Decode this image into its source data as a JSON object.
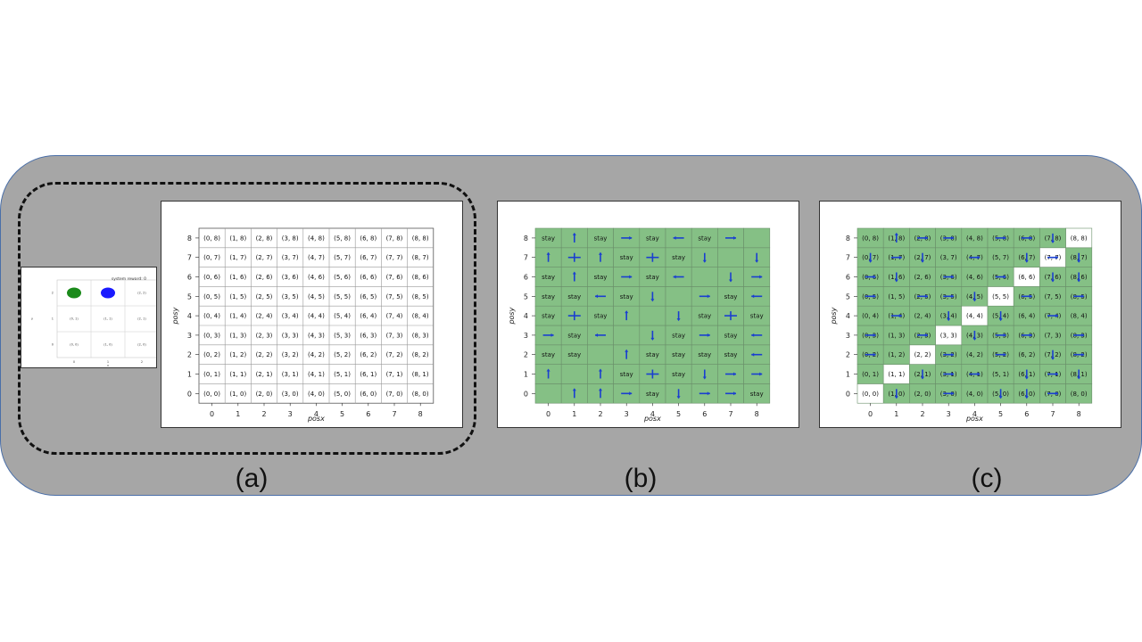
{
  "small_env": {
    "reward_text": "system reward: 0",
    "colors": {
      "agent1": "#1a8a1a",
      "agent2": "#1a1aff"
    },
    "rows": [
      {
        "y": "2",
        "cells": [
          "",
          "",
          "(2, 2)"
        ]
      },
      {
        "y": "1",
        "cells": [
          "(0, 1)",
          "(1, 1)",
          "(2, 1)"
        ]
      },
      {
        "y": "0",
        "cells": [
          "(0, 0)",
          "(1, 0)",
          "(2, 0)"
        ]
      }
    ],
    "x_ticks": [
      "0",
      "1",
      "2"
    ],
    "xlabel": "x",
    "ylabel": "y"
  },
  "grid_axis": {
    "ticks": [
      "0",
      "1",
      "2",
      "3",
      "4",
      "5",
      "6",
      "7",
      "8"
    ],
    "xlabel": "posx",
    "ylabel": "posy"
  },
  "panel_a": {
    "caption": "(a)"
  },
  "panel_b": {
    "caption": "(b)",
    "colors": {
      "cell": "#85c085",
      "grid": "#6a8f6a",
      "arrow": "#1a3fd0"
    },
    "stay_label": "stay",
    "cells": {
      "0,8": "stay",
      "1,8": "up",
      "2,8": "stay",
      "3,8": "right",
      "4,8": "stay",
      "5,8": "left",
      "6,8": "stay",
      "7,8": "right",
      "0,7": "up",
      "1,7": "both",
      "2,7": "up",
      "3,7": "stay",
      "4,7": "both",
      "5,7": "stay",
      "6,7": "down",
      "8,7": "down",
      "0,6": "stay",
      "1,6": "up",
      "2,6": "stay",
      "3,6": "right",
      "4,6": "stay",
      "5,6": "left",
      "7,6": "down",
      "8,6": "right",
      "0,5": "stay",
      "1,5": "stay",
      "2,5": "left",
      "3,5": "stay",
      "4,5": "down",
      "6,5": "right",
      "7,5": "stay",
      "8,5": "left",
      "0,4": "stay",
      "1,4": "both",
      "2,4": "stay",
      "3,4": "up",
      "5,4": "down",
      "6,4": "stay",
      "7,4": "both",
      "8,4": "stay",
      "0,3": "right",
      "1,3": "stay",
      "2,3": "left",
      "4,3": "down",
      "5,3": "stay",
      "6,3": "right",
      "7,3": "stay",
      "8,3": "left",
      "0,2": "stay",
      "1,2": "stay",
      "3,2": "up",
      "4,2": "stay",
      "5,2": "stay",
      "6,2": "stay",
      "7,2": "stay",
      "8,2": "left",
      "0,1": "up",
      "2,1": "up",
      "3,1": "stay",
      "4,1": "both",
      "5,1": "stay",
      "6,1": "down",
      "7,1": "right",
      "8,1": "right",
      "1,0": "up",
      "2,0": "up",
      "3,0": "right",
      "4,0": "stay",
      "5,0": "down",
      "6,0": "right",
      "7,0": "right",
      "8,0": "stay"
    }
  },
  "panel_c": {
    "caption": "(c)",
    "colors": {
      "cell": "#85c085",
      "empty": "#ffffff",
      "grid": "#6a8f6a",
      "arrow": "#1a3fd0"
    },
    "diagonal": [
      [
        0,
        0
      ],
      [
        1,
        1
      ],
      [
        2,
        2
      ],
      [
        3,
        3
      ],
      [
        4,
        4
      ],
      [
        5,
        5
      ],
      [
        6,
        6
      ],
      [
        7,
        7
      ],
      [
        8,
        8
      ]
    ],
    "arrows": {
      "1,8": "up",
      "2,8": "right",
      "3,8": "right",
      "5,8": "right",
      "6,8": "right",
      "7,8": "down",
      "0,7": "down",
      "1,7": "right",
      "2,7": "down",
      "4,7": "right",
      "6,7": "down",
      "7,7": "right",
      "8,7": "down",
      "0,6": "right",
      "1,6": "down",
      "3,6": "right",
      "5,6": "right",
      "7,6": "down",
      "8,6": "down",
      "0,5": "right",
      "2,5": "right",
      "3,5": "right",
      "4,5": "down",
      "6,5": "right",
      "8,5": "right",
      "1,4": "right",
      "3,4": "down",
      "5,4": "down",
      "7,4": "right",
      "0,3": "right",
      "2,3": "right",
      "4,3": "down",
      "5,3": "right",
      "6,3": "right",
      "8,3": "right",
      "0,2": "right",
      "3,2": "right",
      "5,2": "right",
      "7,2": "down",
      "8,2": "right",
      "2,1": "down",
      "3,1": "right",
      "4,1": "right",
      "6,1": "down",
      "7,1": "right",
      "8,1": "down",
      "1,0": "down",
      "3,0": "right",
      "5,0": "down",
      "6,0": "down",
      "7,0": "right"
    }
  }
}
